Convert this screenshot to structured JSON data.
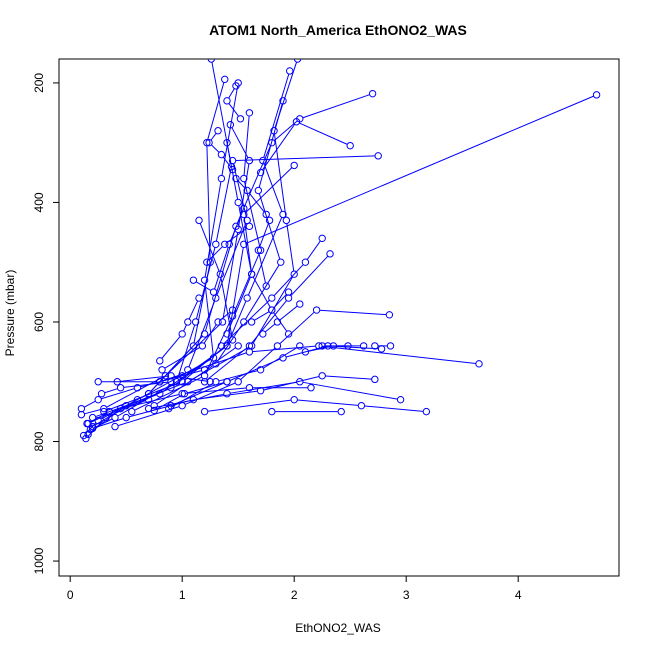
{
  "chart_data": {
    "type": "line",
    "title": "ATOM1 North_America EthONO2_WAS",
    "xlabel": "EthONO2_WAS",
    "ylabel": "Pressure (mbar)",
    "xlim": [
      -0.1,
      4.9
    ],
    "ylim": [
      1025,
      160
    ],
    "y_reversed": true,
    "grid": false,
    "legend": "none",
    "line_color": "#0000ff",
    "marker": "open-circle",
    "x_ticks": [
      0,
      1,
      2,
      3,
      4
    ],
    "y_ticks": [
      200,
      400,
      600,
      800,
      1000
    ],
    "series": [
      {
        "values": [
          [
            1.26,
            160
          ],
          [
            1.44,
            340
          ],
          [
            1.3,
            470
          ],
          [
            1.12,
            600
          ],
          [
            0.95,
            700
          ],
          [
            0.4,
            760
          ],
          [
            0.18,
            780
          ]
        ]
      },
      {
        "values": [
          [
            1.38,
            194
          ],
          [
            1.22,
            300
          ],
          [
            1.25,
            500
          ],
          [
            1.1,
            640
          ],
          [
            0.7,
            720
          ],
          [
            0.25,
            765
          ],
          [
            0.12,
            790
          ]
        ]
      },
      {
        "values": [
          [
            1.43,
            270
          ],
          [
            1.6,
            330
          ],
          [
            1.5,
            445
          ],
          [
            1.36,
            600
          ],
          [
            0.85,
            690
          ],
          [
            0.3,
            745
          ],
          [
            0.1,
            755
          ]
        ]
      },
      {
        "values": [
          [
            1.5,
            200
          ],
          [
            1.35,
            360
          ],
          [
            1.2,
            530
          ],
          [
            1.28,
            660
          ],
          [
            0.6,
            730
          ],
          [
            0.2,
            775
          ]
        ]
      },
      {
        "values": [
          [
            1.96,
            180
          ],
          [
            1.72,
            330
          ],
          [
            1.9,
            420
          ],
          [
            1.58,
            560
          ],
          [
            1.4,
            640
          ],
          [
            0.9,
            710
          ],
          [
            0.32,
            760
          ],
          [
            0.14,
            795
          ]
        ]
      },
      {
        "values": [
          [
            2.03,
            160
          ],
          [
            1.82,
            280
          ],
          [
            1.93,
            430
          ],
          [
            2.0,
            520
          ],
          [
            1.62,
            640
          ],
          [
            1.05,
            700
          ],
          [
            0.5,
            740
          ],
          [
            0.16,
            770
          ]
        ]
      },
      {
        "values": [
          [
            1.6,
            250
          ],
          [
            1.55,
            360
          ],
          [
            1.7,
            480
          ],
          [
            1.45,
            590
          ],
          [
            1.2,
            690
          ],
          [
            0.55,
            750
          ]
        ]
      },
      {
        "values": [
          [
            1.15,
            430
          ],
          [
            1.34,
            520
          ],
          [
            1.45,
            630
          ],
          [
            1.0,
            700
          ],
          [
            0.3,
            750
          ]
        ]
      },
      {
        "values": [
          [
            1.9,
            230
          ],
          [
            1.68,
            380
          ],
          [
            1.88,
            500
          ],
          [
            1.55,
            600
          ],
          [
            1.3,
            670
          ],
          [
            0.75,
            740
          ]
        ]
      },
      {
        "values": [
          [
            4.7,
            220
          ],
          [
            1.55,
            470
          ],
          [
            1.4,
            640
          ],
          [
            0.8,
            720
          ],
          [
            0.2,
            760
          ]
        ]
      },
      {
        "values": [
          [
            2.7,
            218
          ],
          [
            2.05,
            260
          ],
          [
            1.8,
            300
          ],
          [
            1.48,
            440
          ],
          [
            1.2,
            620
          ],
          [
            0.7,
            720
          ]
        ]
      },
      {
        "values": [
          [
            2.5,
            305
          ],
          [
            2.02,
            265
          ],
          [
            1.7,
            350
          ]
        ]
      },
      {
        "values": [
          [
            2.75,
            322
          ],
          [
            1.45,
            330
          ],
          [
            1.58,
            430
          ],
          [
            1.3,
            560
          ],
          [
            1.05,
            680
          ]
        ]
      },
      {
        "values": [
          [
            2.0,
            338
          ],
          [
            1.55,
            420
          ],
          [
            1.62,
            520
          ],
          [
            1.4,
            620
          ]
        ]
      },
      {
        "values": [
          [
            2.25,
            460
          ],
          [
            2.1,
            500
          ],
          [
            1.8,
            560
          ],
          [
            1.35,
            640
          ]
        ]
      },
      {
        "values": [
          [
            2.32,
            486
          ],
          [
            1.95,
            560
          ],
          [
            1.6,
            640
          ],
          [
            1.2,
            700
          ]
        ]
      },
      {
        "values": [
          [
            2.85,
            588
          ],
          [
            2.2,
            580
          ],
          [
            1.85,
            640
          ],
          [
            1.5,
            700
          ],
          [
            1.0,
            740
          ],
          [
            0.4,
            775
          ]
        ]
      },
      {
        "values": [
          [
            3.65,
            670
          ],
          [
            2.22,
            640
          ],
          [
            1.6,
            650
          ],
          [
            0.8,
            700
          ]
        ]
      },
      {
        "values": [
          [
            2.78,
            645
          ],
          [
            2.3,
            640
          ],
          [
            1.9,
            660
          ],
          [
            1.4,
            700
          ],
          [
            0.9,
            740
          ]
        ]
      },
      {
        "values": [
          [
            2.72,
            696
          ],
          [
            2.25,
            690
          ],
          [
            1.7,
            715
          ],
          [
            1.1,
            730
          ],
          [
            0.5,
            760
          ],
          [
            0.2,
            778
          ]
        ]
      },
      {
        "values": [
          [
            2.95,
            730
          ],
          [
            2.05,
            700
          ],
          [
            1.4,
            720
          ],
          [
            0.7,
            745
          ]
        ]
      },
      {
        "values": [
          [
            3.18,
            750
          ],
          [
            2.6,
            740
          ],
          [
            2.0,
            730
          ],
          [
            1.2,
            750
          ]
        ]
      },
      {
        "values": [
          [
            2.42,
            750
          ],
          [
            1.8,
            750
          ]
        ]
      },
      {
        "values": [
          [
            2.62,
            640
          ],
          [
            2.35,
            640
          ],
          [
            2.1,
            650
          ]
        ]
      },
      {
        "values": [
          [
            2.48,
            640
          ],
          [
            2.25,
            640
          ]
        ]
      },
      {
        "values": [
          [
            2.86,
            640
          ],
          [
            2.72,
            640
          ]
        ]
      },
      {
        "values": [
          [
            2.15,
            710
          ],
          [
            1.6,
            710
          ],
          [
            1.0,
            720
          ],
          [
            0.45,
            745
          ],
          [
            0.16,
            788
          ]
        ]
      },
      {
        "values": [
          [
            0.25,
            700
          ],
          [
            0.8,
            700
          ],
          [
            1.2,
            680
          ],
          [
            1.5,
            640
          ]
        ]
      },
      {
        "values": [
          [
            0.8,
            665
          ],
          [
            1.0,
            620
          ],
          [
            1.05,
            600
          ],
          [
            1.15,
            560
          ]
        ]
      },
      {
        "values": [
          [
            0.82,
            680
          ],
          [
            1.18,
            640
          ],
          [
            1.32,
            600
          ],
          [
            1.45,
            580
          ]
        ]
      },
      {
        "values": [
          [
            0.88,
            745
          ],
          [
            1.3,
            700
          ],
          [
            1.7,
            680
          ],
          [
            2.05,
            640
          ]
        ]
      },
      {
        "values": [
          [
            0.42,
            700
          ],
          [
            0.9,
            690
          ],
          [
            1.25,
            700
          ]
        ]
      },
      {
        "values": [
          [
            0.75,
            748
          ],
          [
            1.02,
            720
          ],
          [
            1.4,
            700
          ]
        ]
      },
      {
        "values": [
          [
            0.28,
            720
          ],
          [
            0.45,
            710
          ],
          [
            0.9,
            700
          ]
        ]
      },
      {
        "values": [
          [
            0.1,
            745
          ],
          [
            0.25,
            730
          ],
          [
            0.6,
            710
          ],
          [
            1.0,
            690
          ]
        ]
      },
      {
        "values": [
          [
            0.15,
            770
          ],
          [
            0.35,
            750
          ],
          [
            0.7,
            730
          ]
        ]
      },
      {
        "values": [
          [
            1.22,
            500
          ],
          [
            1.38,
            470
          ],
          [
            1.6,
            440
          ]
        ]
      },
      {
        "values": [
          [
            1.1,
            530
          ],
          [
            1.28,
            550
          ],
          [
            1.42,
            470
          ],
          [
            1.55,
            410
          ]
        ]
      },
      {
        "values": [
          [
            1.62,
            600
          ],
          [
            1.8,
            580
          ],
          [
            1.95,
            550
          ]
        ]
      },
      {
        "values": [
          [
            1.72,
            620
          ],
          [
            1.85,
            600
          ],
          [
            2.05,
            570
          ]
        ]
      },
      {
        "values": [
          [
            1.48,
            360
          ],
          [
            1.58,
            380
          ],
          [
            1.75,
            420
          ]
        ]
      },
      {
        "values": [
          [
            1.78,
            430
          ],
          [
            1.68,
            480
          ],
          [
            1.75,
            540
          ]
        ]
      },
      {
        "values": [
          [
            1.95,
            620
          ],
          [
            1.8,
            580
          ],
          [
            1.62,
            520
          ],
          [
            1.5,
            400
          ],
          [
            1.4,
            300
          ]
        ]
      },
      {
        "values": [
          [
            1.32,
            280
          ],
          [
            1.24,
            300
          ],
          [
            1.35,
            320
          ],
          [
            1.45,
            345
          ]
        ]
      },
      {
        "values": [
          [
            1.52,
            260
          ],
          [
            1.4,
            230
          ],
          [
            1.48,
            205
          ]
        ]
      }
    ]
  }
}
